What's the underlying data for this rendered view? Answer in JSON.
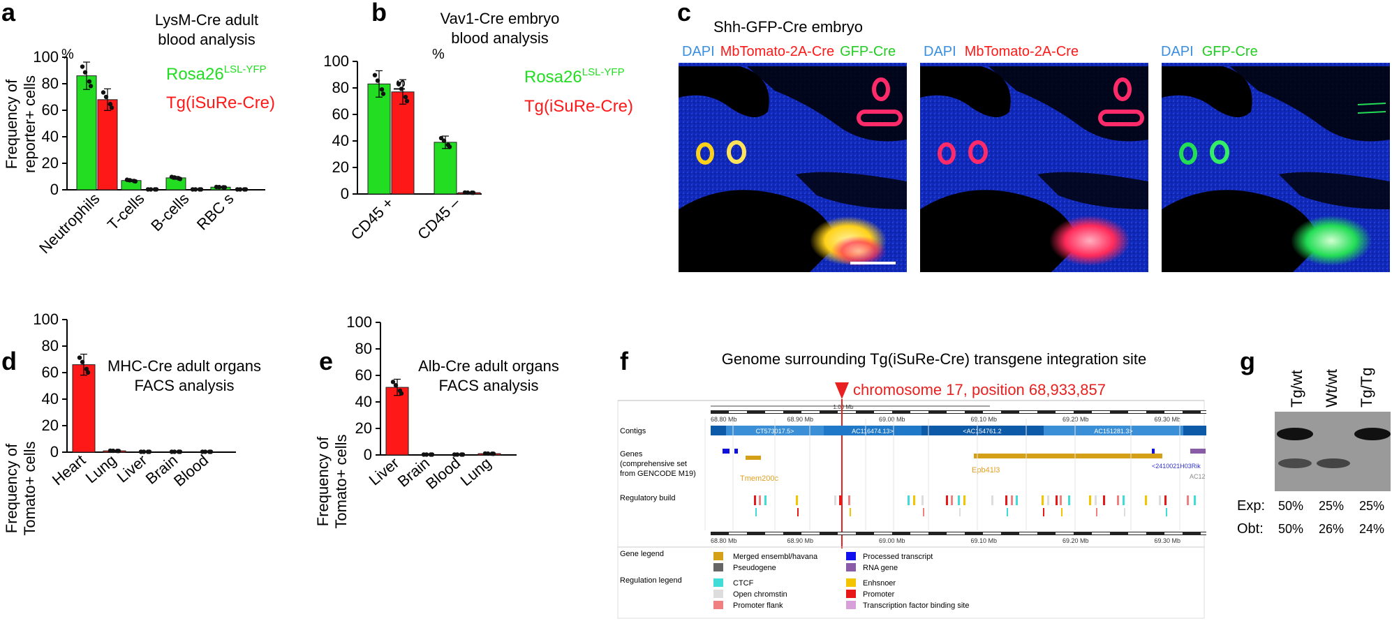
{
  "colors": {
    "green": "#22dd22",
    "red": "#ff1818",
    "blue_text": "#3a8ee0",
    "blue_bar": "#1f78c8",
    "gold": "#d4a017",
    "legend_red": "#e03030"
  },
  "panel_letters": {
    "a": "a",
    "b": "b",
    "c": "c",
    "d": "d",
    "e": "e",
    "f": "f",
    "g": "g"
  },
  "shared": {
    "percent_unit": "%",
    "reporter_label_1": "Frequency of",
    "reporter_label_2": "reporter+  cells",
    "tomato_label_1": "Frequency of",
    "tomato_label_2": "Tomato+ cells",
    "legend_rosa_main": "Rosa26",
    "legend_rosa_sup": "LSL-YFP",
    "legend_tg": "Tg(iSuRe-Cre)"
  },
  "chart_data": [
    {
      "panel": "a",
      "type": "bar",
      "title_1": "LysM-Cre adult",
      "title_2": "blood analysis",
      "ylabel": "Frequency of reporter+ cells (%)",
      "ylim": [
        0,
        100
      ],
      "yticks": [
        "0",
        "20",
        "40",
        "60",
        "80",
        "100"
      ],
      "categories": [
        "Neutrophils",
        "T-cells",
        "B-cells",
        "RBC s"
      ],
      "series": [
        {
          "name": "Rosa26 LSL-YFP",
          "values": [
            86,
            7,
            9,
            2
          ]
        },
        {
          "name": "Tg(iSuRe-Cre)",
          "values": [
            68,
            0,
            0,
            0
          ]
        }
      ]
    },
    {
      "panel": "b",
      "type": "bar",
      "title_1": "Vav1-Cre embryo",
      "title_2": "blood analysis",
      "ylabel": "Frequency of reporter+ cells (%)",
      "ylim": [
        0,
        100
      ],
      "yticks": [
        "0",
        "20",
        "40",
        "60",
        "80",
        "100"
      ],
      "categories": [
        "CD45 +",
        "CD45 –"
      ],
      "series": [
        {
          "name": "Rosa26 LSL-YFP",
          "values": [
            83,
            39
          ]
        },
        {
          "name": "Tg(iSuRe-Cre)",
          "values": [
            77,
            1
          ]
        }
      ]
    },
    {
      "panel": "d",
      "type": "bar",
      "title_1": "MHC-Cre adult organs",
      "title_2": "FACS analysis",
      "ylabel": "Frequency of Tomato+ cells",
      "ylim": [
        0,
        100
      ],
      "yticks": [
        "0",
        "20",
        "40",
        "60",
        "80",
        "100"
      ],
      "categories": [
        "Heart",
        "Lung",
        "Liver",
        "Brain",
        "Blood"
      ],
      "series": [
        {
          "name": "Tomato+",
          "values": [
            66,
            1,
            0,
            0,
            0
          ]
        }
      ]
    },
    {
      "panel": "e",
      "type": "bar",
      "title_1": "Alb-Cre adult organs",
      "title_2": "FACS analysis",
      "ylabel": "Frequency of Tomato+ cells",
      "ylim": [
        0,
        100
      ],
      "yticks": [
        "0",
        "20",
        "40",
        "60",
        "80",
        "100"
      ],
      "categories": [
        "Liver",
        "Brain",
        "Blood",
        "Lung"
      ],
      "series": [
        {
          "name": "Tomato+",
          "values": [
            51,
            0,
            0,
            1
          ]
        }
      ]
    }
  ],
  "panel_c": {
    "title": "Shh-GFP-Cre embryo",
    "img1": {
      "dapi": "DAPI",
      "tomato": "MbTomato-2A-Cre",
      "gfp": "GFP-Cre"
    },
    "img2": {
      "dapi": "DAPI",
      "tomato": "MbTomato-2A-Cre"
    },
    "img3": {
      "dapi": "DAPI",
      "gfp": "GFP-Cre"
    }
  },
  "panel_f": {
    "title": "Genome surrounding Tg(iSuRe-Cre) transgene integration site",
    "site": "chromosome 17, position 68,933,857",
    "scale_label": "1.00 Mb",
    "ticks": [
      "68.80 Mb",
      "68.90 Mb",
      "69.00 Mb",
      "69.10 Mb",
      "69.20 Mb",
      "69.30 Mb"
    ],
    "contigs_label": "Contigs",
    "contigs": [
      "CT573017.5>",
      "AC116474.13>",
      "<AC154761.2",
      "AC151281.3>"
    ],
    "genes_label_1": "Genes",
    "genes_label_2": "(comprehensive set",
    "genes_label_3": "from GENCODE M19)",
    "gene_tmem": "Tmem200c",
    "gene_epb": "Epb41l3",
    "gene_rik": "<2410021H03Rik",
    "gene_ac": "AC12",
    "reg_label": "Regulatory build",
    "gene_legend_label": "Gene legend",
    "reg_legend_label": "Regulation legend",
    "gene_legend": [
      "Merged ensembl/havana",
      "Processed transcript",
      "Pseudogene",
      "RNA gene"
    ],
    "reg_legend": [
      "CTCF",
      "Enhsnoer",
      "Open chromstin",
      "Promoter",
      "Promoter flank",
      "Transcription factor binding site"
    ]
  },
  "panel_g": {
    "lanes": [
      "Tg/wt",
      "Wt/wt",
      "Tg/Tg"
    ],
    "exp_label": "Exp:",
    "exp": [
      "50%",
      "25%",
      "25%"
    ],
    "obt_label": "Obt:",
    "obt": [
      "50%",
      "26%",
      "24%"
    ]
  }
}
